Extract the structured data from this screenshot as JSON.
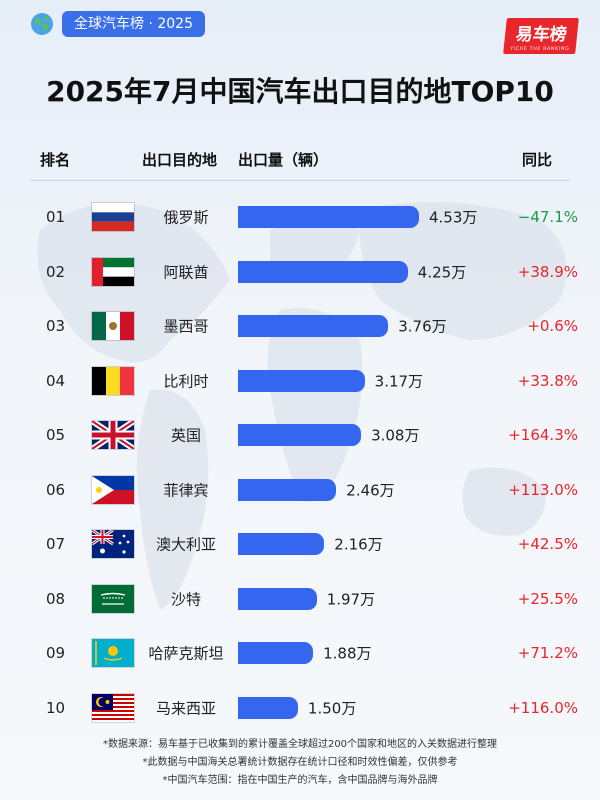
{
  "badge": {
    "label": "全球汽车榜 · 2025"
  },
  "brand": {
    "name": "易车榜",
    "sub": "YICHE THE RANKING"
  },
  "colors": {
    "bar": "#3566f0",
    "increase": "#e8262b",
    "decrease": "#1a9a42",
    "badge": "#3a6fe8"
  },
  "headers": {
    "rank": "排名",
    "destination": "出口目的地",
    "volume": "出口量（辆）",
    "yoy": "同比"
  },
  "chart_data": {
    "type": "bar",
    "orientation": "horizontal",
    "title": "2025年7月中国汽车出口目的地TOP10",
    "unit": "万",
    "x_max": 4.53,
    "rows": [
      {
        "rank": "01",
        "country": "俄罗斯",
        "flag": "russia-flag-icon",
        "value": 4.53,
        "value_label": "4.53万",
        "yoy": "−47.1%",
        "trend": "down"
      },
      {
        "rank": "02",
        "country": "阿联酋",
        "flag": "uae-flag-icon",
        "value": 4.25,
        "value_label": "4.25万",
        "yoy": "+38.9%",
        "trend": "up"
      },
      {
        "rank": "03",
        "country": "墨西哥",
        "flag": "mexico-flag-icon",
        "value": 3.76,
        "value_label": "3.76万",
        "yoy": "+0.6%",
        "trend": "up"
      },
      {
        "rank": "04",
        "country": "比利时",
        "flag": "belgium-flag-icon",
        "value": 3.17,
        "value_label": "3.17万",
        "yoy": "+33.8%",
        "trend": "up"
      },
      {
        "rank": "05",
        "country": "英国",
        "flag": "uk-flag-icon",
        "value": 3.08,
        "value_label": "3.08万",
        "yoy": "+164.3%",
        "trend": "up"
      },
      {
        "rank": "06",
        "country": "菲律宾",
        "flag": "philippines-flag-icon",
        "value": 2.46,
        "value_label": "2.46万",
        "yoy": "+113.0%",
        "trend": "up"
      },
      {
        "rank": "07",
        "country": "澳大利亚",
        "flag": "australia-flag-icon",
        "value": 2.16,
        "value_label": "2.16万",
        "yoy": "+42.5%",
        "trend": "up"
      },
      {
        "rank": "08",
        "country": "沙特",
        "flag": "saudi-flag-icon",
        "value": 1.97,
        "value_label": "1.97万",
        "yoy": "+25.5%",
        "trend": "up"
      },
      {
        "rank": "09",
        "country": "哈萨克斯坦",
        "flag": "kazakhstan-flag-icon",
        "value": 1.88,
        "value_label": "1.88万",
        "yoy": "+71.2%",
        "trend": "up"
      },
      {
        "rank": "10",
        "country": "马来西亚",
        "flag": "malaysia-flag-icon",
        "value": 1.5,
        "value_label": "1.50万",
        "yoy": "+116.0%",
        "trend": "up"
      }
    ]
  },
  "notes": [
    "*数据来源：易车基于已收集到的累计覆盖全球超过200个国家和地区的入关数据进行整理",
    "*此数据与中国海关总署统计数据存在统计口径和时效性偏差，仅供参考",
    "*中国汽车范围：指在中国生产的汽车，含中国品牌与海外品牌"
  ]
}
